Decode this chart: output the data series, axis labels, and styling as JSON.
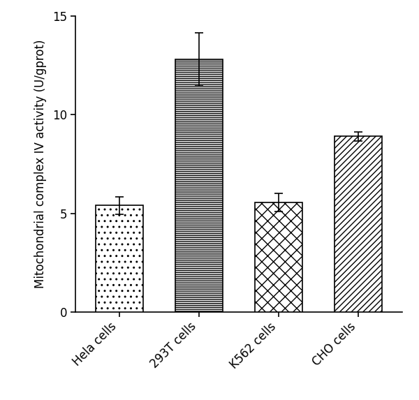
{
  "categories": [
    "Hela cells",
    "293T cells",
    "K562 cells",
    "CHO cells"
  ],
  "values": [
    5.4,
    12.8,
    5.55,
    8.9
  ],
  "errors": [
    0.45,
    1.35,
    0.45,
    0.22
  ],
  "ylabel": "Mitochondrial complex IV activity (U/gprot)",
  "ylim": [
    0,
    15
  ],
  "yticks": [
    0,
    5,
    10,
    15
  ],
  "bar_width": 0.6,
  "background_color": "#ffffff",
  "bar_edge_color": "#000000",
  "bar_face_color": "#ffffff",
  "hatch_patterns": [
    "....",
    "----",
    "xxxx",
    "////"
  ],
  "error_capsize": 4,
  "error_color": "#000000",
  "tick_label_fontsize": 12,
  "ylabel_fontsize": 12
}
